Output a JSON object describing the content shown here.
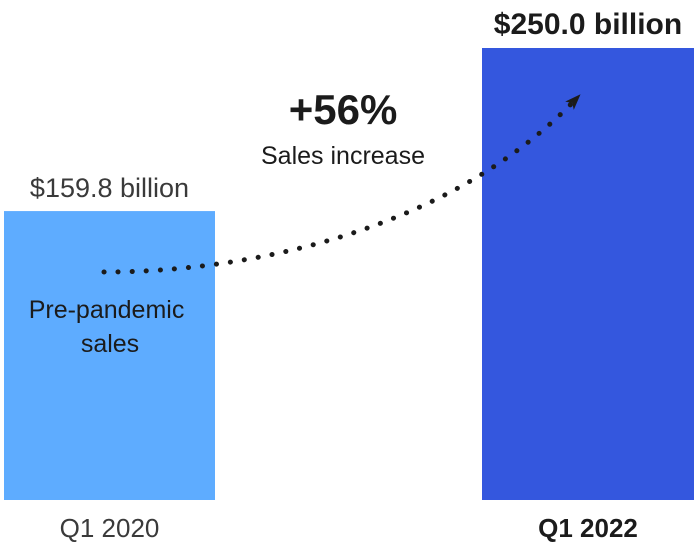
{
  "chart_data": {
    "type": "bar",
    "categories": [
      "Q1 2020",
      "Q1 2022"
    ],
    "values": [
      159.8,
      250.0
    ],
    "value_labels": [
      "$159.8 billion",
      "$250.0 billion"
    ],
    "bar_colors": [
      "#5eacff",
      "#3457de"
    ],
    "bar_inner_label": "Pre-pandemic sales",
    "bar_inner_label_lines": [
      "Pre-pandemic",
      "sales"
    ],
    "annotation": {
      "headline": "+56%",
      "subtext": "Sales increase"
    },
    "ylim": [
      0,
      250.0
    ],
    "grid": false,
    "text_color": "#1b1b1b",
    "muted_text_color": "#3a3a3a"
  }
}
